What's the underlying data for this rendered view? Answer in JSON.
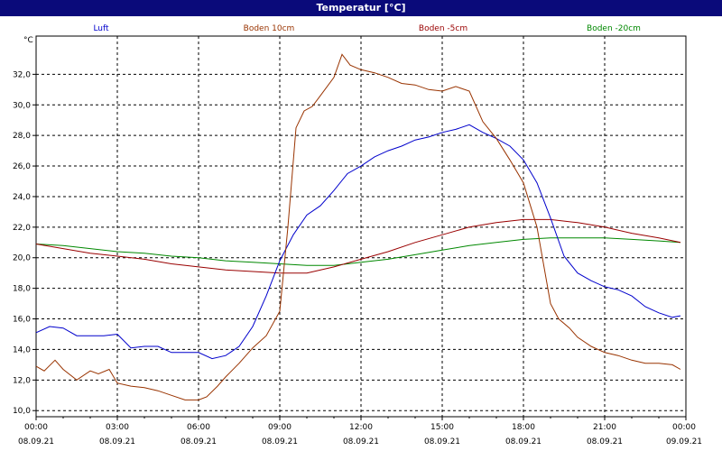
{
  "window": {
    "title": "Temperatur [°C]"
  },
  "chart_data": {
    "type": "line",
    "title": "Temperatur [°C]",
    "ylabel": "°C",
    "xlabel": "",
    "ylim": [
      9.6,
      34.5
    ],
    "yticks": [
      "10,0",
      "12,0",
      "14,0",
      "16,0",
      "18,0",
      "20,0",
      "22,0",
      "24,0",
      "26,0",
      "28,0",
      "30,0",
      "32,0"
    ],
    "ytick_values": [
      10,
      12,
      14,
      16,
      18,
      20,
      22,
      24,
      26,
      28,
      30,
      32
    ],
    "xlim": [
      0,
      24
    ],
    "xticks": [
      {
        "time": "00:00",
        "date": "08.09.21"
      },
      {
        "time": "03:00",
        "date": "08.09.21"
      },
      {
        "time": "06:00",
        "date": "08.09.21"
      },
      {
        "time": "09:00",
        "date": "08.09.21"
      },
      {
        "time": "12:00",
        "date": "08.09.21"
      },
      {
        "time": "15:00",
        "date": "08.09.21"
      },
      {
        "time": "18:00",
        "date": "08.09.21"
      },
      {
        "time": "21:00",
        "date": "08.09.21"
      },
      {
        "time": "00:00",
        "date": "09.09.21"
      }
    ],
    "grid": true,
    "legend_position": "top",
    "series": [
      {
        "name": "Luft",
        "color": "#0000cc",
        "x": [
          0,
          0.5,
          1,
          1.5,
          2,
          2.5,
          3,
          3.5,
          4,
          4.5,
          5,
          5.5,
          6,
          6.5,
          7,
          7.5,
          8,
          8.5,
          9,
          9.5,
          10,
          10.5,
          11,
          11.5,
          12,
          12.5,
          13,
          13.5,
          14,
          14.5,
          15,
          15.5,
          16,
          16.5,
          17,
          17.5,
          18,
          18.5,
          19,
          19.5,
          20,
          20.5,
          21,
          21.5,
          22,
          22.5,
          23,
          23.5,
          23.8
        ],
        "values": [
          15.1,
          15.5,
          15.4,
          14.9,
          14.9,
          14.9,
          15.0,
          14.1,
          14.2,
          14.2,
          13.8,
          13.8,
          13.8,
          13.4,
          13.6,
          14.2,
          15.5,
          17.5,
          19.8,
          21.5,
          22.8,
          23.4,
          24.4,
          25.5,
          26.0,
          26.6,
          27.0,
          27.3,
          27.7,
          27.9,
          28.2,
          28.4,
          28.7,
          28.2,
          27.8,
          27.3,
          26.4,
          24.9,
          22.6,
          20.1,
          19.0,
          18.5,
          18.1,
          17.9,
          17.5,
          16.8,
          16.4,
          16.1,
          16.2
        ]
      },
      {
        "name": "Boden 10cm",
        "color": "#993300",
        "x": [
          0,
          0.3,
          0.7,
          1,
          1.5,
          2,
          2.3,
          2.7,
          3,
          3.5,
          4,
          4.5,
          5,
          5.5,
          6,
          6.3,
          6.7,
          7,
          7.5,
          8,
          8.5,
          9,
          9.3,
          9.6,
          9.9,
          10.2,
          10.5,
          11,
          11.3,
          11.6,
          12,
          12.5,
          13,
          13.5,
          14,
          14.5,
          15,
          15.5,
          16,
          16.5,
          17,
          17.5,
          18,
          18.5,
          19,
          19.3,
          19.7,
          20,
          20.5,
          21,
          21.5,
          22,
          22.5,
          23,
          23.5,
          23.8
        ],
        "values": [
          12.9,
          12.6,
          13.3,
          12.7,
          12.0,
          12.6,
          12.4,
          12.7,
          11.8,
          11.6,
          11.5,
          11.3,
          11.0,
          10.7,
          10.7,
          10.9,
          11.6,
          12.2,
          13.1,
          14.1,
          14.9,
          16.5,
          22.0,
          28.5,
          29.6,
          29.9,
          30.6,
          31.8,
          33.3,
          32.6,
          32.3,
          32.1,
          31.8,
          31.4,
          31.3,
          31.0,
          30.9,
          31.2,
          30.9,
          28.9,
          27.8,
          26.4,
          24.9,
          22.0,
          17.0,
          16.0,
          15.4,
          14.8,
          14.2,
          13.8,
          13.6,
          13.3,
          13.1,
          13.1,
          13.0,
          12.7
        ]
      },
      {
        "name": "Boden -5cm",
        "color": "#990000",
        "x": [
          0,
          1,
          2,
          3,
          4,
          5,
          6,
          7,
          8,
          9,
          10,
          11,
          12,
          13,
          14,
          15,
          16,
          17,
          18,
          19,
          20,
          21,
          22,
          23,
          23.8
        ],
        "values": [
          20.9,
          20.6,
          20.3,
          20.1,
          19.9,
          19.6,
          19.4,
          19.2,
          19.1,
          19.0,
          19.0,
          19.4,
          19.9,
          20.4,
          21.0,
          21.5,
          22.0,
          22.3,
          22.5,
          22.5,
          22.3,
          22.0,
          21.6,
          21.3,
          21.0
        ]
      },
      {
        "name": "Boden -20cm",
        "color": "#008800",
        "x": [
          0,
          1,
          2,
          3,
          4,
          5,
          6,
          7,
          8,
          9,
          10,
          11,
          12,
          13,
          14,
          15,
          16,
          17,
          18,
          19,
          20,
          21,
          22,
          23,
          23.8
        ],
        "values": [
          20.9,
          20.8,
          20.6,
          20.4,
          20.3,
          20.1,
          20.0,
          19.8,
          19.7,
          19.6,
          19.5,
          19.5,
          19.7,
          19.9,
          20.2,
          20.5,
          20.8,
          21.0,
          21.2,
          21.3,
          21.3,
          21.3,
          21.2,
          21.1,
          21.0
        ]
      }
    ]
  }
}
